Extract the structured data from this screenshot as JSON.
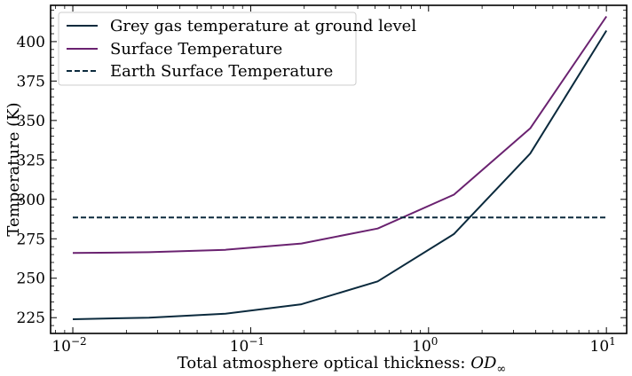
{
  "chart_data": {
    "type": "line",
    "title": "",
    "xlabel": "Total atmosphere optical thickness: OD∞",
    "ylabel": "Temperature (K)",
    "xscale": "log",
    "xlim": [
      0.0075,
      13
    ],
    "ylim": [
      215,
      423
    ],
    "x_ticks": [
      {
        "value": 0.01,
        "base": "10",
        "exp": "−2"
      },
      {
        "value": 0.1,
        "base": "10",
        "exp": "−1"
      },
      {
        "value": 1,
        "base": "10",
        "exp": "0"
      },
      {
        "value": 10,
        "base": "10",
        "exp": "1"
      }
    ],
    "y_ticks": [
      225,
      250,
      275,
      300,
      325,
      350,
      375,
      400
    ],
    "grid": false,
    "legend_position": "top-left",
    "series": [
      {
        "name": "Grey gas temperature at ground level",
        "color": "#0b2a3d",
        "style": "solid",
        "x": [
          0.01,
          0.0268,
          0.072,
          0.193,
          0.518,
          1.39,
          3.73,
          10
        ],
        "y": [
          224,
          225,
          227.5,
          233.5,
          248,
          278,
          329,
          407
        ]
      },
      {
        "name": "Surface Temperature",
        "color": "#6a2270",
        "style": "solid",
        "x": [
          0.01,
          0.0268,
          0.072,
          0.193,
          0.518,
          1.39,
          3.73,
          10
        ],
        "y": [
          266,
          266.5,
          268,
          272,
          281.5,
          303,
          345,
          416
        ]
      },
      {
        "name": "Earth Surface Temperature",
        "color": "#0b2a3d",
        "style": "dashed",
        "x": [
          0.01,
          10
        ],
        "y": [
          288.5,
          288.5
        ]
      }
    ]
  }
}
